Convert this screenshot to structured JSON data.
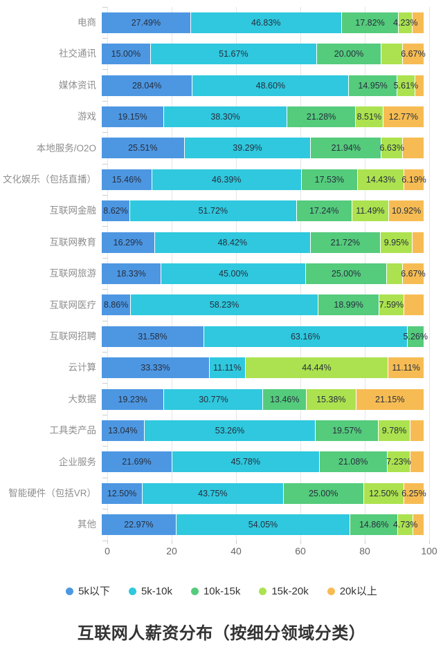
{
  "chart_data": {
    "type": "bar",
    "stacked": true,
    "orientation": "horizontal",
    "title": "互联网人薪资分布（按细分领域分类）",
    "xlabel": "",
    "ylabel": "",
    "xlim": [
      0,
      100
    ],
    "x_ticks": [
      "0",
      "20",
      "40",
      "60",
      "80",
      "100"
    ],
    "grid": true,
    "legend_position": "bottom",
    "series_names": [
      "5k以下",
      "5k-10k",
      "10k-15k",
      "15k-20k",
      "20k以上"
    ],
    "series_keys": [
      "under-5k",
      "5k-10k",
      "10k-15k",
      "15k-20k",
      "over-20k"
    ],
    "series_colors": [
      "#4D97E2",
      "#2FC8DE",
      "#55CB7C",
      "#ACE24F",
      "#F6BC53"
    ],
    "categories": [
      "电商",
      "社交通讯",
      "媒体资讯",
      "游戏",
      "本地服务/O2O",
      "文化娱乐（包括直播）",
      "互联网金融",
      "互联网教育",
      "互联网旅游",
      "互联网医疗",
      "互联网招聘",
      "云计算",
      "大数据",
      "工具类产品",
      "企业服务",
      "智能硬件（包括VR）",
      "其他"
    ],
    "rows": [
      {
        "category": "电商",
        "values": [
          27.49,
          46.83,
          17.82,
          4.23,
          3.63
        ],
        "labels": [
          "27.49%",
          "46.83%",
          "17.82%",
          "4.23%",
          ""
        ]
      },
      {
        "category": "社交通讯",
        "values": [
          15.0,
          51.67,
          20.0,
          6.66,
          6.67
        ],
        "labels": [
          "15.00%",
          "51.67%",
          "20.00%",
          "",
          "6.67%"
        ]
      },
      {
        "category": "媒体资讯",
        "values": [
          28.04,
          48.6,
          14.95,
          5.61,
          2.8
        ],
        "labels": [
          "28.04%",
          "48.60%",
          "14.95%",
          "5.61%",
          ""
        ]
      },
      {
        "category": "游戏",
        "values": [
          19.15,
          38.3,
          21.28,
          8.51,
          12.77
        ],
        "labels": [
          "19.15%",
          "38.30%",
          "21.28%",
          "8.51%",
          "12.77%"
        ]
      },
      {
        "category": "本地服务/O2O",
        "values": [
          25.51,
          39.29,
          21.94,
          6.63,
          6.63
        ],
        "labels": [
          "25.51%",
          "39.29%",
          "21.94%",
          "6.63%",
          ""
        ]
      },
      {
        "category": "文化娱乐（包括直播）",
        "values": [
          15.46,
          46.39,
          17.53,
          14.43,
          6.19
        ],
        "labels": [
          "15.46%",
          "46.39%",
          "17.53%",
          "14.43%",
          "6.19%"
        ]
      },
      {
        "category": "互联网金融",
        "values": [
          8.62,
          51.72,
          17.24,
          11.49,
          10.92
        ],
        "labels": [
          "8.62%",
          "51.72%",
          "17.24%",
          "11.49%",
          "10.92%"
        ]
      },
      {
        "category": "互联网教育",
        "values": [
          16.29,
          48.42,
          21.72,
          9.95,
          3.62
        ],
        "labels": [
          "16.29%",
          "48.42%",
          "21.72%",
          "9.95%",
          ""
        ]
      },
      {
        "category": "互联网旅游",
        "values": [
          18.33,
          45.0,
          25.0,
          5.0,
          6.67
        ],
        "labels": [
          "18.33%",
          "45.00%",
          "25.00%",
          "",
          "6.67%"
        ]
      },
      {
        "category": "互联网医疗",
        "values": [
          8.86,
          58.23,
          18.99,
          7.59,
          6.33
        ],
        "labels": [
          "8.86%",
          "58.23%",
          "18.99%",
          "7.59%",
          ""
        ]
      },
      {
        "category": "互联网招聘",
        "values": [
          31.58,
          63.16,
          5.26,
          0,
          0
        ],
        "labels": [
          "31.58%",
          "63.16%",
          "5.26%",
          "",
          ""
        ]
      },
      {
        "category": "云计算",
        "values": [
          33.33,
          11.11,
          0,
          44.44,
          11.11
        ],
        "labels": [
          "33.33%",
          "11.11%",
          "",
          "44.44%",
          "11.11%"
        ]
      },
      {
        "category": "大数据",
        "values": [
          19.23,
          30.77,
          13.46,
          15.38,
          21.15
        ],
        "labels": [
          "19.23%",
          "30.77%",
          "13.46%",
          "15.38%",
          "21.15%"
        ]
      },
      {
        "category": "工具类产品",
        "values": [
          13.04,
          53.26,
          19.57,
          9.78,
          4.35
        ],
        "labels": [
          "13.04%",
          "53.26%",
          "19.57%",
          "9.78%",
          ""
        ]
      },
      {
        "category": "企业服务",
        "values": [
          21.69,
          45.78,
          21.08,
          7.23,
          4.22
        ],
        "labels": [
          "21.69%",
          "45.78%",
          "21.08%",
          "7.23%",
          ""
        ]
      },
      {
        "category": "智能硬件（包括VR）",
        "values": [
          12.5,
          43.75,
          25.0,
          12.5,
          6.25
        ],
        "labels": [
          "12.50%",
          "43.75%",
          "25.00%",
          "12.50%",
          "6.25%"
        ]
      },
      {
        "category": "其他",
        "values": [
          22.97,
          54.05,
          14.86,
          4.73,
          3.39
        ],
        "labels": [
          "22.97%",
          "54.05%",
          "14.86%",
          "4.73%",
          ""
        ]
      }
    ]
  },
  "style_colors": {
    "gridline": "#e5e5e5",
    "axis_tick": "#cccccc",
    "x_tick_label": "#666666",
    "category_label": "#8e8e8e",
    "segment_label": "#262e3d",
    "legend_text": "#333333",
    "title_text": "#333333",
    "background": "#ffffff"
  }
}
